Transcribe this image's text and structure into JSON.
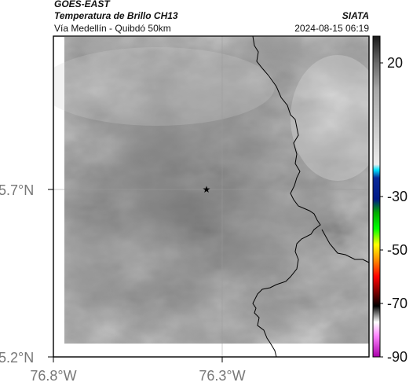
{
  "header": {
    "satellite": "GOES-EAST",
    "product": "Temperatura de Brillo CH13",
    "region": "Vía Medellín - Quibdó 50km",
    "agency": "SIATA",
    "timestamp": "2024-08-15 06:19"
  },
  "map": {
    "x_ticks": [
      "76.8°W",
      "76.3°W"
    ],
    "y_ticks": [
      "5.7°N",
      "5.2°N"
    ],
    "marker_icon": "star-icon",
    "grid": true,
    "colors": {
      "ir_light": "#d4d4d4",
      "ir_mid": "#9a9a9a",
      "ir_dark": "#6e6e6e",
      "border_line": "#000000",
      "grid_line": "#9a9a9a"
    }
  },
  "colorbar": {
    "labels": [
      "20",
      "-30",
      "-50",
      "-70",
      "-90"
    ],
    "stops": [
      {
        "value": 30,
        "color": "#1a1a1a"
      },
      {
        "value": 20,
        "color": "#6a6a6a"
      },
      {
        "value": 10,
        "color": "#a8a8a8"
      },
      {
        "value": -18,
        "color": "#ececec"
      },
      {
        "value": -20,
        "color": "#00e5ff"
      },
      {
        "value": -23,
        "color": "#0a2a9a"
      },
      {
        "value": -31,
        "color": "#001a88"
      },
      {
        "value": -36,
        "color": "#00aa00"
      },
      {
        "value": -42,
        "color": "#00ff00"
      },
      {
        "value": -48,
        "color": "#ffff00"
      },
      {
        "value": -54,
        "color": "#ff8800"
      },
      {
        "value": -60,
        "color": "#ff0000"
      },
      {
        "value": -66,
        "color": "#770000"
      },
      {
        "value": -71,
        "color": "#000000"
      },
      {
        "value": -77,
        "color": "#ffffff"
      },
      {
        "value": -82,
        "color": "#ff88ff"
      },
      {
        "value": -90,
        "color": "#aa00aa"
      }
    ],
    "range": [
      30,
      -90
    ]
  }
}
